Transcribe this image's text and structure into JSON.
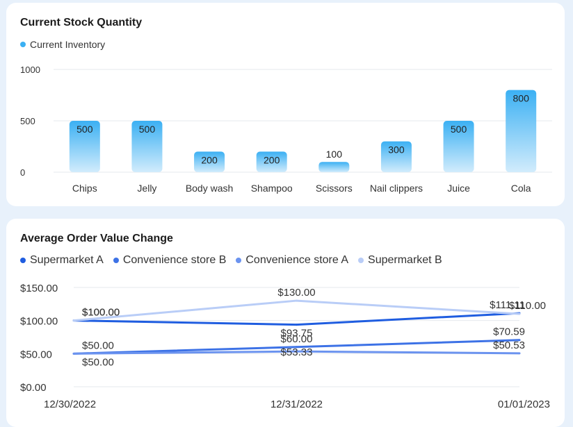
{
  "colors": {
    "bar_top": "#3bb0f3",
    "bar_bottom": "#d2ecfc",
    "legend_dot": "#3bb0f3",
    "series": [
      "#1f5de0",
      "#3d72e6",
      "#6b93ef",
      "#b9cdf7"
    ]
  },
  "chart_data": [
    {
      "type": "bar",
      "title": "Current Stock Quantity",
      "categories": [
        "Chips",
        "Jelly",
        "Body wash",
        "Shampoo",
        "Scissors",
        "Nail clippers",
        "Juice",
        "Cola"
      ],
      "series": [
        {
          "name": "Current Inventory",
          "values": [
            500,
            500,
            200,
            200,
            100,
            300,
            500,
            800
          ]
        }
      ],
      "data_labels": [
        "500",
        "500",
        "200",
        "200",
        "100",
        "300",
        "500",
        "800"
      ],
      "y_ticks": [
        "0",
        "500",
        "1000"
      ],
      "ylim": [
        0,
        1000
      ],
      "grid": true,
      "legend": "top-left"
    },
    {
      "type": "line",
      "title": "Average Order Value Change",
      "categories": [
        "12/30/2022",
        "12/31/2022",
        "01/01/2023"
      ],
      "series": [
        {
          "name": "Supermarket A",
          "values": [
            100.0,
            93.75,
            111.11
          ],
          "labels": [
            "$100.00",
            "$93.75",
            "$111.11"
          ]
        },
        {
          "name": "Convenience store B",
          "values": [
            50.0,
            60.0,
            70.59
          ],
          "labels": [
            "$50.00",
            "$60.00",
            "$70.59"
          ]
        },
        {
          "name": "Convenience store A",
          "values": [
            50.0,
            53.33,
            50.53
          ],
          "labels": [
            "$50.00",
            "$53.33",
            "$50.53"
          ]
        },
        {
          "name": "Supermarket B",
          "values": [
            100.0,
            130.0,
            110.0
          ],
          "labels": [
            "$100.00",
            "$130.00",
            "$110.00"
          ]
        }
      ],
      "y_ticks": [
        "$0.00",
        "$50.00",
        "$100.00",
        "$150.00"
      ],
      "ylim": [
        0,
        150
      ],
      "grid": true,
      "legend": "top-left"
    }
  ]
}
